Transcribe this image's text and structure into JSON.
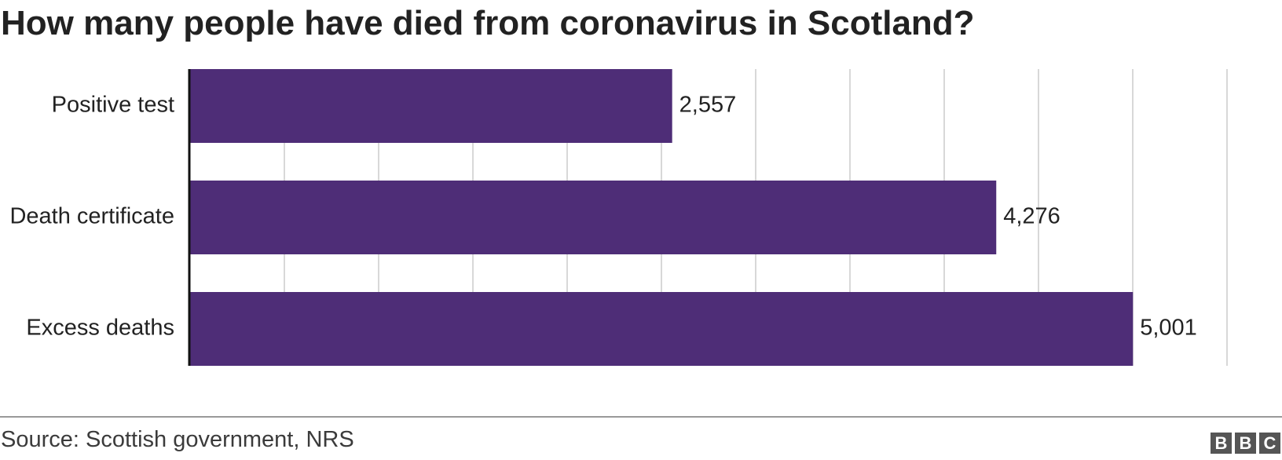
{
  "title": "How many people have died from coronavirus in Scotland?",
  "source": "Source: Scottish government, NRS",
  "logo": {
    "letters": [
      "B",
      "B",
      "C"
    ]
  },
  "colors": {
    "bar": "#4e2d77",
    "grid": "#cccccc",
    "axis": "#111111",
    "text": "#222222"
  },
  "chart_data": {
    "type": "bar",
    "orientation": "horizontal",
    "categories": [
      "Positive test",
      "Death certificate",
      "Excess deaths"
    ],
    "values": [
      2557,
      4276,
      5001
    ],
    "value_labels": [
      "2,557",
      "4,276",
      "5,001"
    ],
    "xlim": [
      0,
      5500
    ],
    "grid": true,
    "tick_labels_visible": false
  }
}
